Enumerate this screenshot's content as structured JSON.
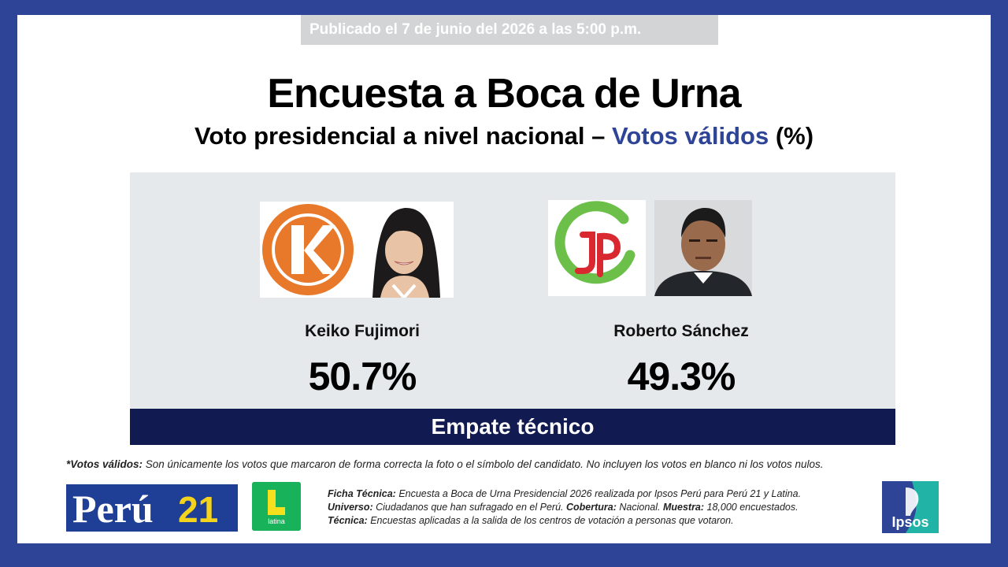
{
  "published": "Publicado el 7 de junio del 2026 a las 5:00 p.m.",
  "title": "Encuesta a Boca de Urna",
  "subtitle": {
    "prefix": "Voto presidencial a nivel nacional – ",
    "accent": "Votos válidos",
    "suffix": " (%)"
  },
  "candidates": [
    {
      "name": "Keiko Fujimori",
      "percent": "50.7%",
      "party_logo": "fuerza-popular-k-logo"
    },
    {
      "name": "Roberto Sánchez",
      "percent": "49.3%",
      "party_logo": "juntos-por-el-peru-jp-logo"
    }
  ],
  "verdict": "Empate técnico",
  "footnote": {
    "label": "*Votos válidos:",
    "text": " Son únicamente los votos que marcaron de forma correcta la foto o el símbolo del candidato. No incluyen los votos en blanco ni los votos nulos."
  },
  "logos": {
    "peru21": "Perú21",
    "latina": "latina",
    "ipsos": "Ipsos"
  },
  "ficha": {
    "ficha_label": "Ficha Técnica:",
    "ficha_text": " Encuesta a Boca de Urna Presidencial 2026 realizada por Ipsos Perú para Perú 21 y Latina.",
    "universo_label": "Universo:",
    "universo_text": " Ciudadanos que han sufragado en el Perú. ",
    "cobertura_label": "Cobertura:",
    "cobertura_text": " Nacional. ",
    "muestra_label": "Muestra:",
    "muestra_text": " 18,000 encuestados.",
    "tecnica_label": "Técnica:",
    "tecnica_text": " Encuestas aplicadas a la salida de los centros de votación a personas que votaron."
  },
  "colors": {
    "frame": "#2e4496",
    "accent": "#2e4496",
    "panel": "#e6e9ec",
    "verdict_bar": "#121a52",
    "fp_orange": "#e8782a",
    "jp_green": "#6cc04a",
    "jp_red": "#d9282f",
    "latina_green": "#18b25a",
    "ipsos_teal": "#20b3a6"
  }
}
